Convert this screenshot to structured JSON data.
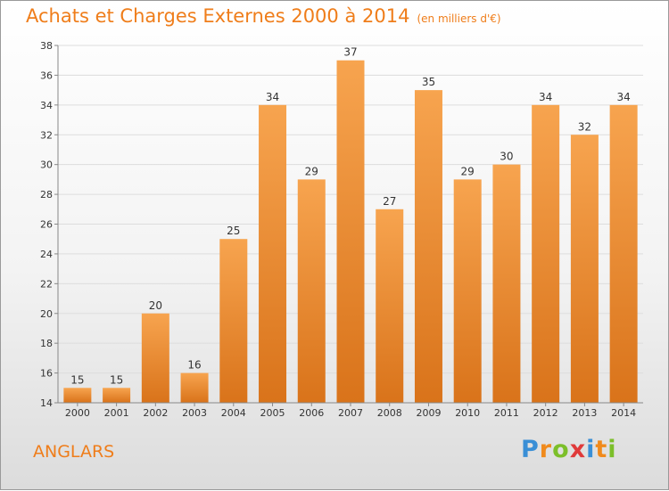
{
  "chart_data": {
    "type": "bar",
    "title": "Achats et Charges Externes 2000 à 2014",
    "subtitle": "(en milliers d'€)",
    "categories": [
      "2000",
      "2001",
      "2002",
      "2003",
      "2004",
      "2005",
      "2006",
      "2007",
      "2008",
      "2009",
      "2010",
      "2011",
      "2012",
      "2013",
      "2014"
    ],
    "values": [
      15,
      15,
      20,
      16,
      25,
      34,
      29,
      37,
      27,
      35,
      29,
      30,
      34,
      32,
      34
    ],
    "ylim": [
      14,
      38
    ],
    "yticks": [
      14,
      16,
      18,
      20,
      22,
      24,
      26,
      28,
      30,
      32,
      34,
      36,
      38
    ],
    "grid": true,
    "bar_color_top": "#f7a44f",
    "bar_color_bottom": "#d9731a"
  },
  "location": "ANGLARS",
  "brand": {
    "letters": [
      "P",
      "r",
      "o",
      "x",
      "i",
      "t",
      "i"
    ],
    "colors": [
      "#3a8fd6",
      "#f08a1c",
      "#7cbf2a",
      "#e03a3a",
      "#3a8fd6",
      "#f08a1c",
      "#7cbf2a"
    ]
  },
  "colors": {
    "accent": "#ef7d1a",
    "gridline": "#dddddd",
    "axis": "#888888"
  }
}
